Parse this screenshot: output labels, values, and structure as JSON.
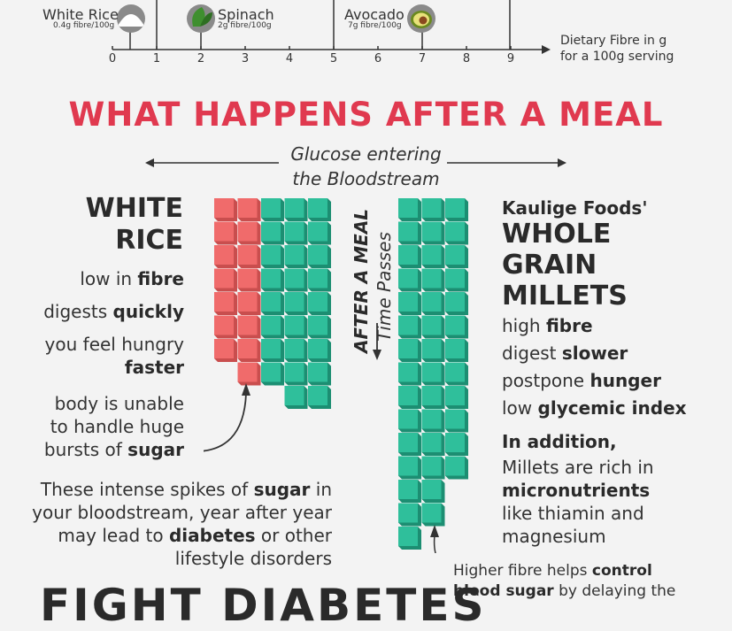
{
  "fibre_axis": {
    "ticks": [
      "0",
      "1",
      "2",
      "3",
      "4",
      "5",
      "6",
      "7",
      "8",
      "9"
    ],
    "note_line1": "Dietary Fibre in g",
    "note_line2": "for a 100g serving",
    "foods": [
      {
        "name": "White Rice",
        "sub": "0.4g fibre/100g",
        "fibre": 0.4,
        "icon": "rice-icon"
      },
      {
        "name": "Spinach",
        "sub": "2g fibre/100g",
        "fibre": 2,
        "icon": "spinach-icon"
      },
      {
        "name": "Avocado",
        "sub": "7g fibre/100g",
        "fibre": 7,
        "icon": "avocado-icon"
      }
    ]
  },
  "section_title": "WHAT HAPPENS AFTER A MEAL",
  "glucose_label": {
    "line1": "Glucose entering",
    "line2": "the Bloodstream"
  },
  "time_label": {
    "bold": "AFTER A MEAL",
    "italic": "Time Passes"
  },
  "white_rice": {
    "heading1": "WHITE",
    "heading2": "RICE",
    "fibre": {
      "pre": "low in ",
      "bold": "fibre"
    },
    "digest": {
      "pre": "digests ",
      "bold": "quickly"
    },
    "hungry": {
      "line1": "you feel hungry",
      "bold": "faster"
    },
    "body": {
      "line1": "body is unable",
      "line2": "to handle huge",
      "pre": "bursts of ",
      "bold": "sugar"
    },
    "spikes": {
      "l1_pre": "These intense spikes of ",
      "l1_bold": "sugar",
      "l1_post": " in",
      "l2": "your bloodstream, year after year",
      "l3_pre": "may lead to ",
      "l3_bold": "diabetes",
      "l3_post": " or other",
      "l4": "lifestyle disorders"
    }
  },
  "millets": {
    "brand": "Kaulige Foods'",
    "heading1": "WHOLE",
    "heading2": "GRAIN",
    "heading3": "MILLETS",
    "fibre": {
      "pre": "high ",
      "bold": "fibre"
    },
    "digest": {
      "pre": "digest ",
      "bold": "slower"
    },
    "hunger": {
      "pre": "postpone ",
      "bold": "hunger"
    },
    "gi": {
      "pre": "low ",
      "bold": "glycemic index"
    },
    "addition": "In addition,",
    "rich": {
      "line1": "Millets are rich in",
      "bold": "micronutrients",
      "line3": "like thiamin and",
      "line4": "magnesium"
    },
    "footer": {
      "pre": "Higher fibre helps ",
      "bold1": "control",
      "bold2": "blood sugar",
      "post": " by delaying the"
    }
  },
  "bottom_title": "FIGHT DIABETES",
  "colors": {
    "red": "#f06b6b",
    "teal": "#2fbf9b",
    "title_red": "#e0394f"
  }
}
